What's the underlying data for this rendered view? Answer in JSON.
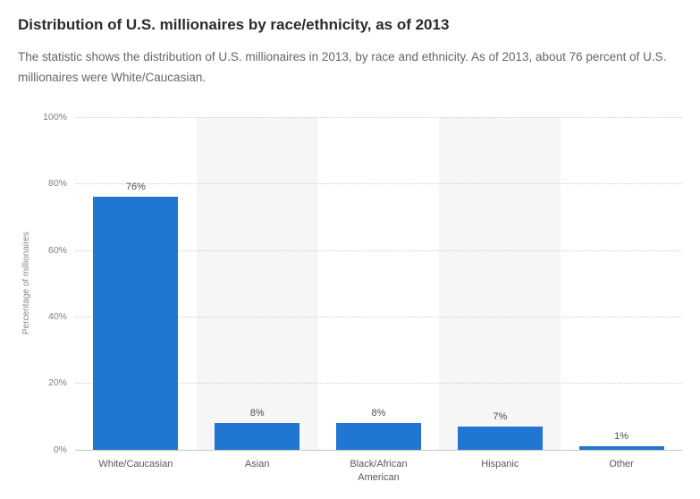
{
  "header": {
    "title": "Distribution of U.S. millionaires by race/ethnicity, as of 2013",
    "subtitle": "The statistic shows the distribution of U.S. millionaires in 2013, by race and ethnicity. As of 2013, about 76 percent of U.S. millionaires were White/Caucasian."
  },
  "chart_data": {
    "type": "bar",
    "title": "Distribution of U.S. millionaires by race/ethnicity, as of 2013",
    "categories": [
      "White/Caucasian",
      "Asian",
      "Black/African American",
      "Hispanic",
      "Other"
    ],
    "values": [
      76,
      8,
      8,
      7,
      1
    ],
    "value_labels": [
      "76%",
      "8%",
      "8%",
      "7%",
      "1%"
    ],
    "xlabel": "",
    "ylabel": "Percentage of millionaires",
    "ylim": [
      0,
      100
    ],
    "ytick_step": 20,
    "yticks": [
      "0%",
      "20%",
      "40%",
      "60%",
      "80%",
      "100%"
    ],
    "grid": "horizontal-dotted",
    "legend": "none",
    "bar_color": "#2176d2",
    "band_color_even": "#ffffff",
    "band_color_odd": "#f6f6f6"
  }
}
